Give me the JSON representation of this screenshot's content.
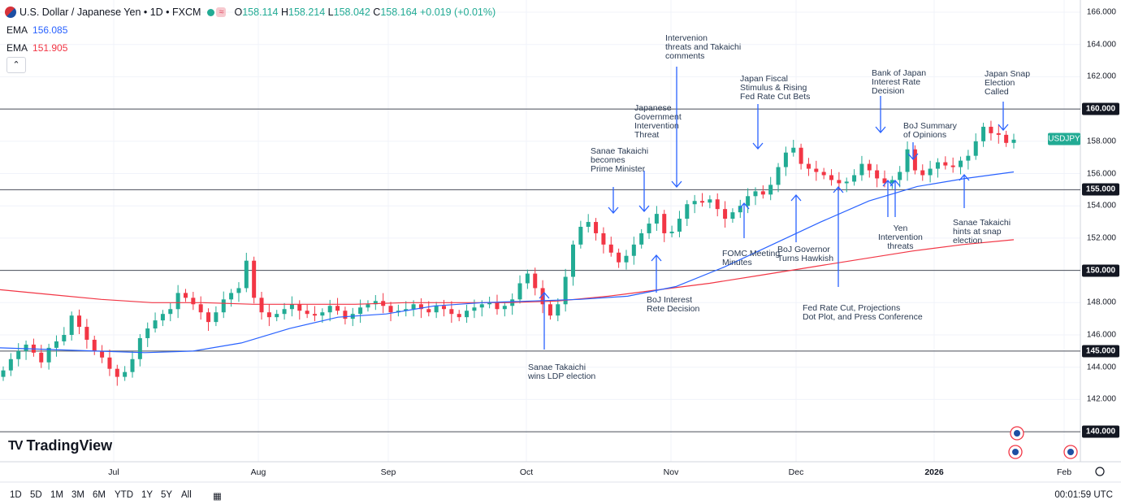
{
  "header": {
    "title": "U.S. Dollar / Japanese Yen • 1D • FXCM",
    "ohlc": [
      {
        "k": "O",
        "v": "158.114"
      },
      {
        "k": "H",
        "v": "158.214"
      },
      {
        "k": "L",
        "v": "158.042"
      },
      {
        "k": "C",
        "v": "158.164"
      }
    ],
    "change": "+0.019 (+0.01%)"
  },
  "indicators": [
    {
      "label": "EMA",
      "value": "156.085",
      "color": "#2962ff"
    },
    {
      "label": "EMA",
      "value": "151.905",
      "color": "#f23645"
    }
  ],
  "symbol_tag": "USDJPY",
  "price_axis": [
    "166.000",
    "164.000",
    "162.000",
    "160.000",
    "158.000",
    "156.000",
    "155.000",
    "154.000",
    "152.000",
    "150.000",
    "148.000",
    "146.000",
    "145.000",
    "144.000",
    "142.000",
    "140.000"
  ],
  "time_axis": [
    "Jul",
    "Aug",
    "Sep",
    "Oct",
    "Nov",
    "Dec",
    "2026",
    "Feb"
  ],
  "annotations": [
    {
      "id": "ldp",
      "text": "Sanae Takaichi\nwins LDP election"
    },
    {
      "id": "boj-rate",
      "text": "BoJ Interest\nRete Decision"
    },
    {
      "id": "pm",
      "text": "Sanae Takaichi\nbecomes\nPrime Minister"
    },
    {
      "id": "gov-threat",
      "text": "Japanese\nGovernment\nIntervention\nThreat"
    },
    {
      "id": "int-threats",
      "text": "Intervenion\nthreats and Takaichi\ncomments"
    },
    {
      "id": "fiscal",
      "text": "Japan Fiscal\nStimulus & Rising\nFed Rate Cut Bets"
    },
    {
      "id": "fomc",
      "text": "FOMC Meeting\nMinutes"
    },
    {
      "id": "boj-gov",
      "text": "BoJ Governor\nTurns Hawkish"
    },
    {
      "id": "fed-cut",
      "text": "Fed Rate Cut, Projections\nDot Plot, and Press Conference"
    },
    {
      "id": "boj-decision",
      "text": "Bank of Japan\nInterest Rate\nDecision"
    },
    {
      "id": "boj-summary",
      "text": "BoJ Summary\nof Opinions"
    },
    {
      "id": "yen-threats",
      "text": "Yen\nIntervention\nthreats"
    },
    {
      "id": "snap-hint",
      "text": "Sanae Takaichi\nhints at snap\nelection"
    },
    {
      "id": "snap-called",
      "text": "Japan Snap\nElection\nCalled"
    }
  ],
  "logo": "TradingView",
  "timeframes": [
    "1D",
    "5D",
    "1M",
    "3M",
    "6M",
    "YTD",
    "1Y",
    "5Y",
    "All"
  ],
  "clock": "00:01:59 UTC",
  "chart_data": {
    "type": "candlestick",
    "title": "U.S. Dollar / Japanese Yen • 1D • FXCM",
    "ylim": [
      139.5,
      166.6
    ],
    "horizontal_levels": [
      160.0,
      155.0,
      150.0,
      145.0,
      140.0
    ],
    "x_months": [
      "Jul",
      "Aug",
      "Sep",
      "Oct",
      "Nov",
      "Dec",
      "2026",
      "Feb"
    ],
    "series": [
      {
        "name": "EMA",
        "value": 156.085
      },
      {
        "name": "EMA",
        "value": 151.905
      }
    ],
    "ema_fast": [
      145.2,
      145.1,
      145.0,
      144.9,
      145.0,
      145.5,
      146.4,
      147.1,
      147.3,
      147.8,
      148.0,
      148.1,
      148.2,
      148.4,
      149.0,
      150.2,
      151.6,
      153.0,
      154.3,
      155.2,
      155.7,
      156.1
    ],
    "ema_slow": [
      148.8,
      148.5,
      148.2,
      148.0,
      148.0,
      147.9,
      147.9,
      147.9,
      148.0,
      148.0,
      148.0,
      148.1,
      148.4,
      148.8,
      149.2,
      149.7,
      150.2,
      150.7,
      151.2,
      151.6,
      151.9
    ],
    "closes": [
      143.8,
      144.5,
      145.0,
      145.4,
      144.9,
      144.3,
      145.2,
      145.6,
      146.0,
      147.2,
      146.5,
      145.7,
      145.0,
      144.6,
      143.9,
      143.4,
      143.7,
      144.5,
      145.8,
      146.4,
      146.9,
      147.3,
      147.6,
      148.6,
      148.3,
      147.9,
      147.4,
      146.8,
      147.4,
      148.2,
      148.6,
      148.9,
      150.6,
      148.3,
      147.4,
      147.1,
      147.3,
      147.6,
      147.9,
      147.5,
      147.3,
      147.2,
      147.4,
      147.8,
      147.5,
      147.0,
      147.3,
      147.7,
      147.9,
      148.1,
      147.8,
      147.4,
      147.5,
      147.6,
      147.9,
      147.6,
      147.4,
      147.8,
      147.6,
      147.3,
      147.1,
      147.5,
      147.7,
      147.9,
      148.0,
      147.6,
      147.8,
      148.2,
      149.2,
      149.8,
      148.9,
      147.9,
      147.2,
      147.9,
      149.6,
      151.6,
      152.7,
      153.0,
      152.3,
      151.6,
      151.1,
      150.5,
      150.9,
      151.6,
      152.3,
      152.9,
      153.5,
      152.3,
      152.4,
      153.2,
      154.1,
      154.3,
      154.2,
      154.4,
      153.8,
      153.2,
      153.6,
      154.0,
      154.6,
      154.9,
      154.7,
      155.3,
      156.4,
      157.3,
      157.6,
      156.6,
      156.3,
      156.1,
      155.9,
      155.6,
      155.4,
      155.5,
      155.9,
      156.6,
      156.2,
      155.7,
      155.4,
      155.6,
      156.1,
      157.5,
      156.2,
      155.9,
      156.3,
      156.7,
      156.5,
      156.4,
      156.8,
      157.1,
      158.0,
      158.9,
      158.5,
      158.4,
      157.9,
      158.1
    ]
  }
}
